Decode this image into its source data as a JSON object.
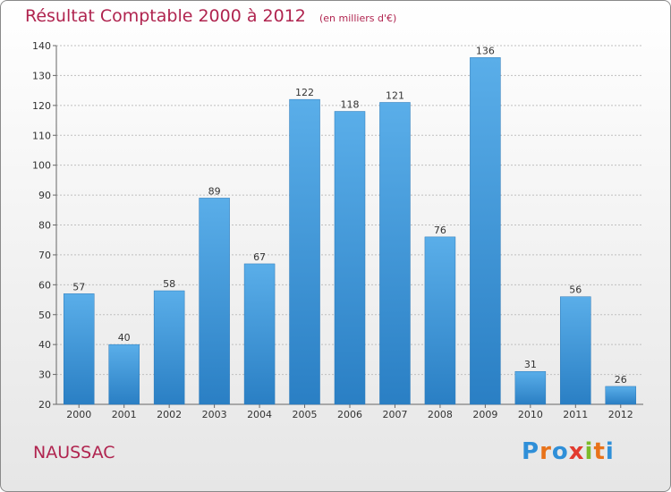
{
  "header": {
    "title": "Résultat Comptable 2000 à 2012",
    "subtitle": "(en milliers d'€)"
  },
  "footer": {
    "commune": "NAUSSAC",
    "brand": "Proxiti",
    "brand_colors": [
      "#2f8fd8",
      "#e8731a",
      "#2f8fd8",
      "#e23b2f",
      "#7cbb2a",
      "#e8731a",
      "#2f8fd8"
    ]
  },
  "chart_data": {
    "type": "bar",
    "title": "Résultat Comptable 2000 à 2012",
    "subtitle": "(en milliers d'€)",
    "xlabel": "",
    "ylabel": "",
    "categories": [
      "2000",
      "2001",
      "2002",
      "2003",
      "2004",
      "2005",
      "2006",
      "2007",
      "2008",
      "2009",
      "2010",
      "2011",
      "2012"
    ],
    "values": [
      57,
      40,
      58,
      89,
      67,
      122,
      118,
      121,
      76,
      136,
      31,
      56,
      26
    ],
    "ylim": [
      20,
      140
    ],
    "yticks": [
      20,
      30,
      40,
      50,
      60,
      70,
      80,
      90,
      100,
      110,
      120,
      130,
      140
    ],
    "grid": true,
    "bar_color_top": "#5aaee9",
    "bar_color_bottom": "#2a7fc4",
    "grid_color": "#bfbfbf"
  }
}
